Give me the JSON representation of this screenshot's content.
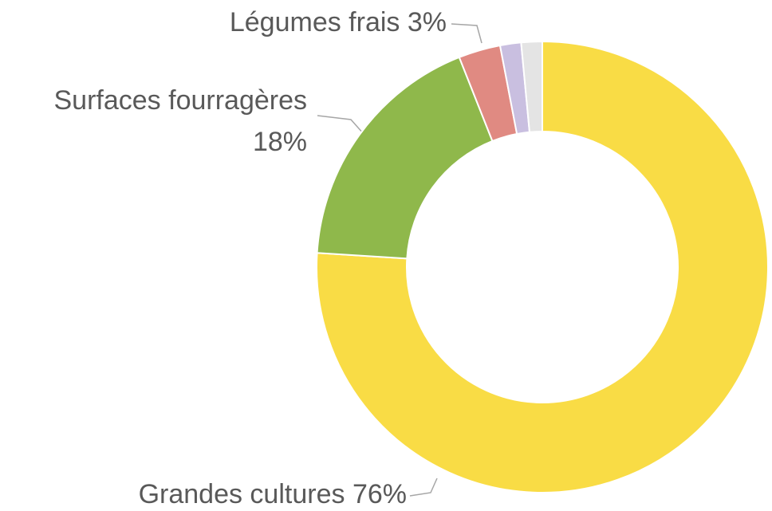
{
  "chart_data": {
    "type": "donut",
    "categories": [
      "Grandes cultures",
      "Surfaces fourragères",
      "Légumes frais",
      null,
      null
    ],
    "values": [
      76,
      18,
      3,
      1.5,
      1.5
    ],
    "value_labels": [
      "76%",
      "18%",
      "3%",
      null,
      null
    ],
    "colors": [
      "#f9dc45",
      "#8fb84b",
      "#e08a82",
      "#c9bfe0",
      "#e4e4e4"
    ]
  }
}
